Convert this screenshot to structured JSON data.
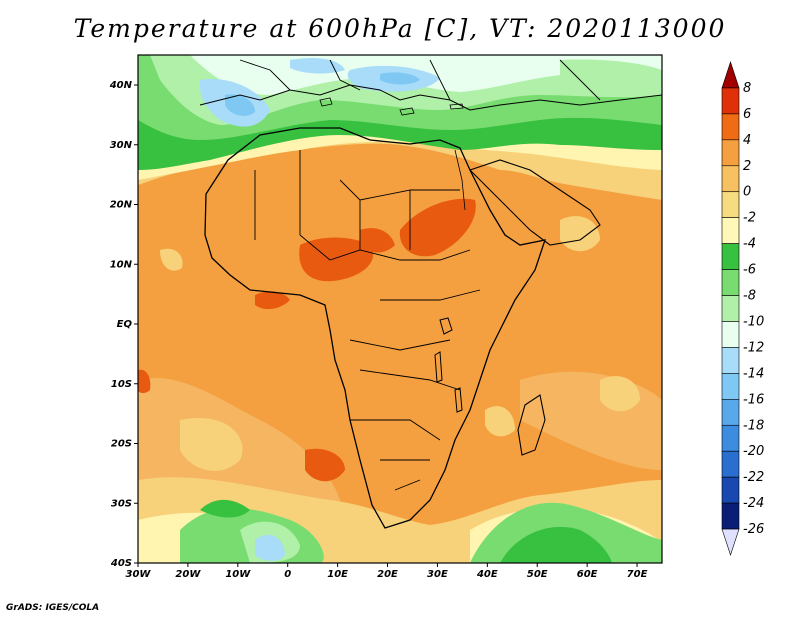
{
  "title": "Temperature at 600hPa [C], VT: 2020113000",
  "credit": "GrADS: IGES/COLA",
  "axes": {
    "lon_labels": [
      "30W",
      "20W",
      "10W",
      "0",
      "10E",
      "20E",
      "30E",
      "40E",
      "50E",
      "60E",
      "70E"
    ],
    "lat_labels": [
      "40N",
      "30N",
      "20N",
      "10N",
      "EQ",
      "10S",
      "20S",
      "30S",
      "40S"
    ]
  },
  "colorbar": {
    "levels": [
      "8",
      "6",
      "4",
      "2",
      "0",
      "-2",
      "-4",
      "-6",
      "-8",
      "-10",
      "-12",
      "-14",
      "-16",
      "-18",
      "-20",
      "-22",
      "-24",
      "-26"
    ],
    "colors": [
      "#a00000",
      "#e0300a",
      "#f06c14",
      "#f5a040",
      "#f7c060",
      "#f5dc80",
      "#fff8b8",
      "#38c040",
      "#78dc70",
      "#b0f0a8",
      "#e8fff0",
      "#a8dcf8",
      "#80c8f4",
      "#5aa8ec",
      "#3c8ce0",
      "#2a6ed0",
      "#1848b0",
      "#0a1e78",
      "#e0e0ff"
    ]
  },
  "chart_data": {
    "type": "heatmap",
    "title": "Temperature at 600hPa [C], VT: 2020113000",
    "variable": "Temperature at 600hPa",
    "units": "C",
    "valid_time": "2020113000",
    "lon_range": [
      -30,
      75
    ],
    "lat_range": [
      -40,
      45
    ],
    "contour_levels": [
      8,
      6,
      4,
      2,
      0,
      -2,
      -4,
      -6,
      -8,
      -10,
      -12,
      -14,
      -16,
      -18,
      -20,
      -22,
      -24,
      -26
    ],
    "summary": "Warmest values (4 to 6 C) over West Africa and Sudan; cooler values (-6 to -14 C) over the Mediterranean and near 40S"
  }
}
